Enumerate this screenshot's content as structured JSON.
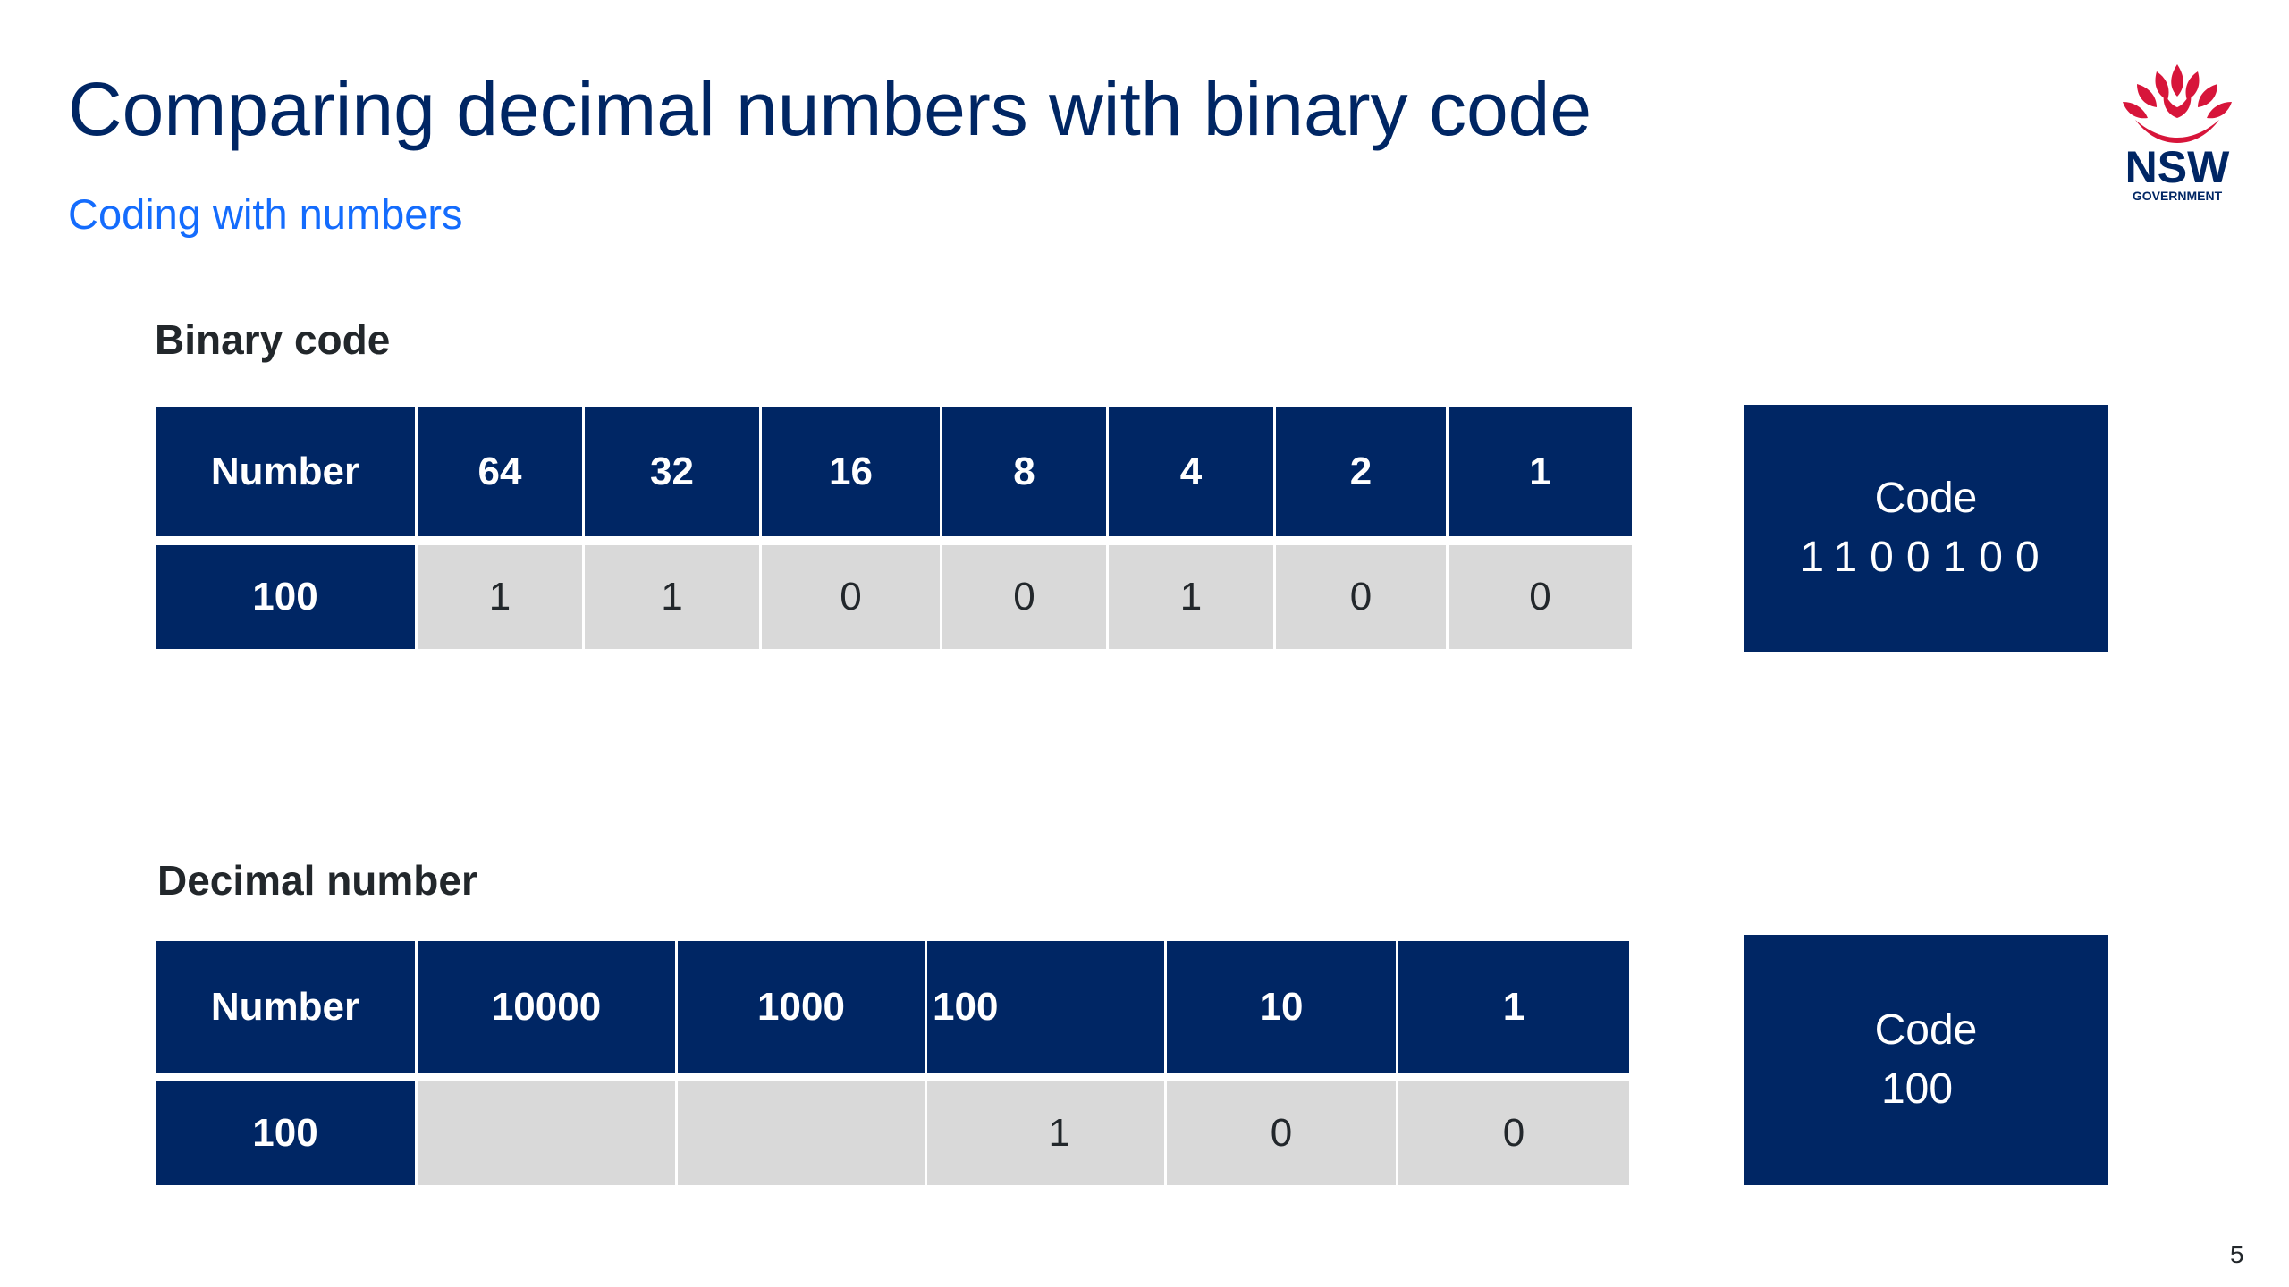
{
  "slide": {
    "title": "Comparing decimal numbers with binary code",
    "subtitle": "Coding with numbers",
    "page_number": "5",
    "logo_text": "NSW",
    "logo_subtext": "GOVERNMENT"
  },
  "binary": {
    "label": "Binary code",
    "header": [
      "Number",
      "64",
      "32",
      "16",
      "8",
      "4",
      "2",
      "1"
    ],
    "row": [
      "100",
      "1",
      "1",
      "0",
      "0",
      "1",
      "0",
      "0"
    ],
    "code_label": "Code",
    "code_value": "1100100"
  },
  "decimal": {
    "label": "Decimal number",
    "header": [
      "Number",
      "10000",
      "1000",
      "100",
      "10",
      "1"
    ],
    "row": [
      "100",
      "",
      "",
      "1",
      "0",
      "0"
    ],
    "code_label": "Code",
    "code_value": "100"
  },
  "colors": {
    "navy": "#002664",
    "blue": "#146cfd",
    "grey": "#d9d9d9",
    "red": "#d7153a"
  }
}
